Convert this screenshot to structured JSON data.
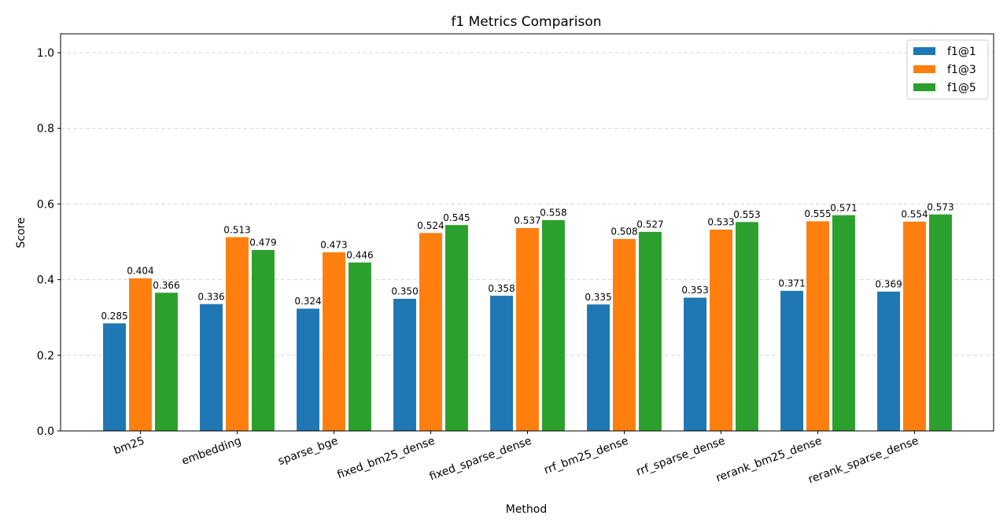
{
  "chart_data": {
    "type": "bar",
    "title": "f1 Metrics Comparison",
    "xlabel": "Method",
    "ylabel": "Score",
    "ylim": [
      0,
      1.05
    ],
    "yticks": [
      "0.0",
      "0.2",
      "0.4",
      "0.6",
      "0.8",
      "1.0"
    ],
    "grid": "y, dashed",
    "legend_position": "top-right",
    "categories": [
      "bm25",
      "embedding",
      "sparse_bge",
      "fixed_bm25_dense",
      "fixed_sparse_dense",
      "rrf_bm25_dense",
      "rrf_sparse_dense",
      "rerank_bm25_dense",
      "rerank_sparse_dense"
    ],
    "series": [
      {
        "name": "f1@1",
        "color": "#1f77b4",
        "values": [
          0.285,
          0.336,
          0.324,
          0.35,
          0.358,
          0.335,
          0.353,
          0.371,
          0.369
        ]
      },
      {
        "name": "f1@3",
        "color": "#ff7f0e",
        "values": [
          0.404,
          0.513,
          0.473,
          0.524,
          0.537,
          0.508,
          0.533,
          0.555,
          0.554
        ]
      },
      {
        "name": "f1@5",
        "color": "#2ca02c",
        "values": [
          0.366,
          0.479,
          0.446,
          0.545,
          0.558,
          0.527,
          0.553,
          0.571,
          0.573
        ]
      }
    ]
  }
}
